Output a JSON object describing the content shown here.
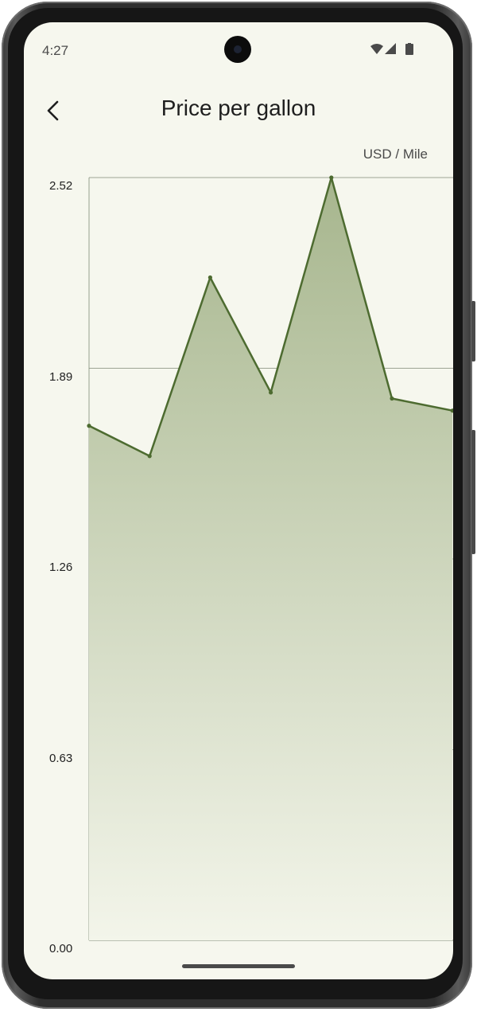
{
  "status_bar": {
    "time": "4:27",
    "icons": [
      "wifi-icon",
      "signal-icon",
      "battery-icon"
    ]
  },
  "app_bar": {
    "back_icon": "chevron-left-icon",
    "title": "Price per gallon"
  },
  "chart_unit": "USD / Mile",
  "colors": {
    "screen_bg": "#f6f7ee",
    "line": "#4d6b30",
    "fill_top": "#a7b68e",
    "fill_bottom": "#f3f5ea",
    "grid": "#7f8a76"
  },
  "chart_data": {
    "type": "area",
    "title": "Price per gallon",
    "ylabel": "USD / Mile",
    "xlabel": "",
    "ylim": [
      0,
      2.52
    ],
    "yticks": [
      "0.00",
      "0.63",
      "1.26",
      "1.89",
      "2.52"
    ],
    "grid": true,
    "series": [
      {
        "values": [
          1.7,
          1.6,
          2.19,
          1.81,
          2.52,
          1.79,
          1.75
        ]
      }
    ]
  }
}
